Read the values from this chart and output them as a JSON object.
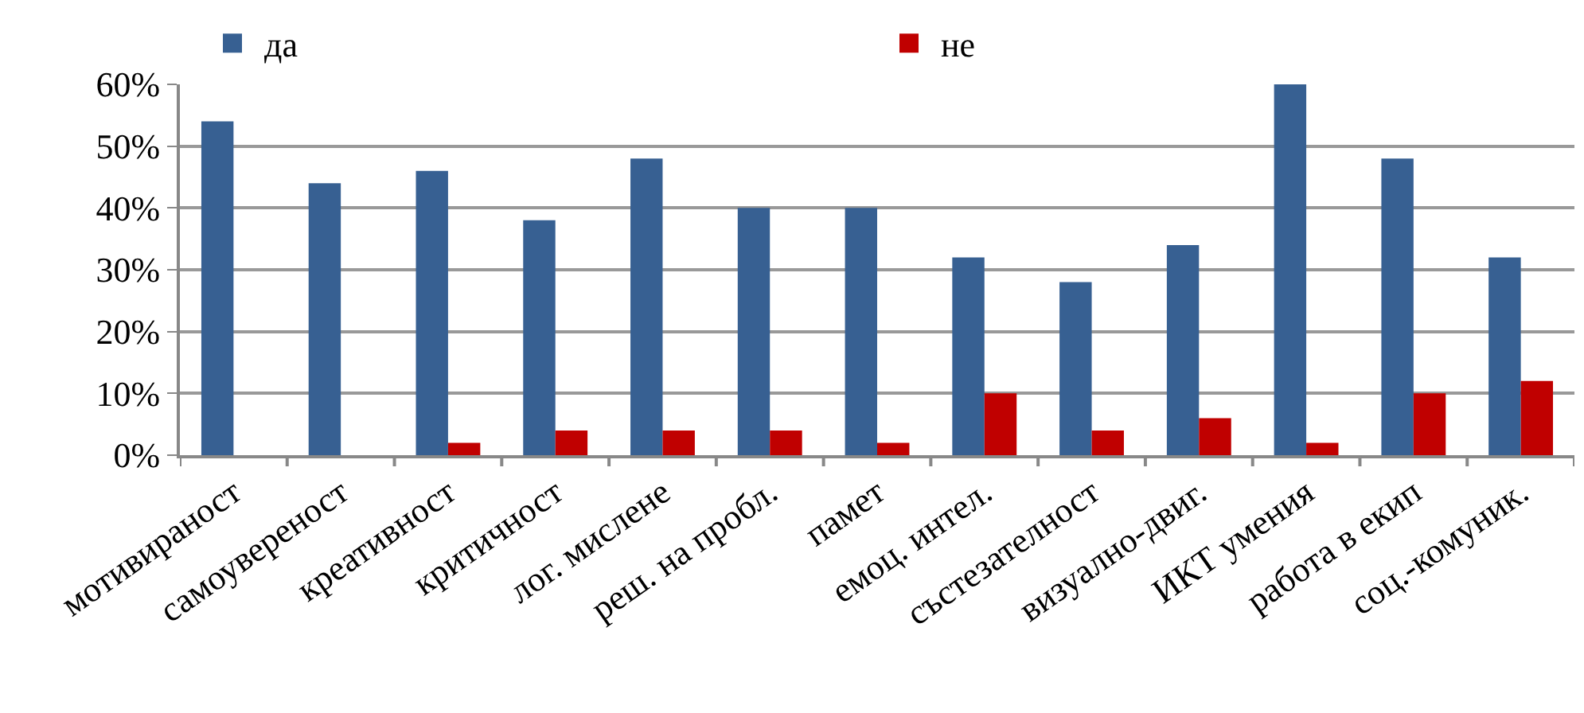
{
  "chart_data": {
    "type": "bar",
    "categories": [
      "мотивираност",
      "самоувереност",
      "креативност",
      "критичност",
      "лог. мислене",
      "реш. на пробл.",
      "памет",
      "емоц. интел.",
      "състезателност",
      "визуално-двиг.",
      "ИКТ умения",
      "работа в екип",
      "соц.-комуник."
    ],
    "series": [
      {
        "name": "да",
        "color": "#376092",
        "values": [
          54,
          44,
          46,
          38,
          48,
          40,
          40,
          32,
          28,
          34,
          60,
          48,
          32
        ]
      },
      {
        "name": "не",
        "color": "#c00000",
        "values": [
          0,
          0,
          2,
          4,
          4,
          4,
          2,
          10,
          4,
          6,
          2,
          10,
          12
        ]
      }
    ],
    "ylim": [
      0,
      60
    ],
    "yticks": [
      {
        "value": 0,
        "label": "0%"
      },
      {
        "value": 10,
        "label": "10%"
      },
      {
        "value": 20,
        "label": "20%"
      },
      {
        "value": 30,
        "label": "30%"
      },
      {
        "value": 40,
        "label": "40%"
      },
      {
        "value": 50,
        "label": "50%"
      },
      {
        "value": 60,
        "label": "60%"
      }
    ],
    "grid": "y",
    "legend": "top"
  }
}
